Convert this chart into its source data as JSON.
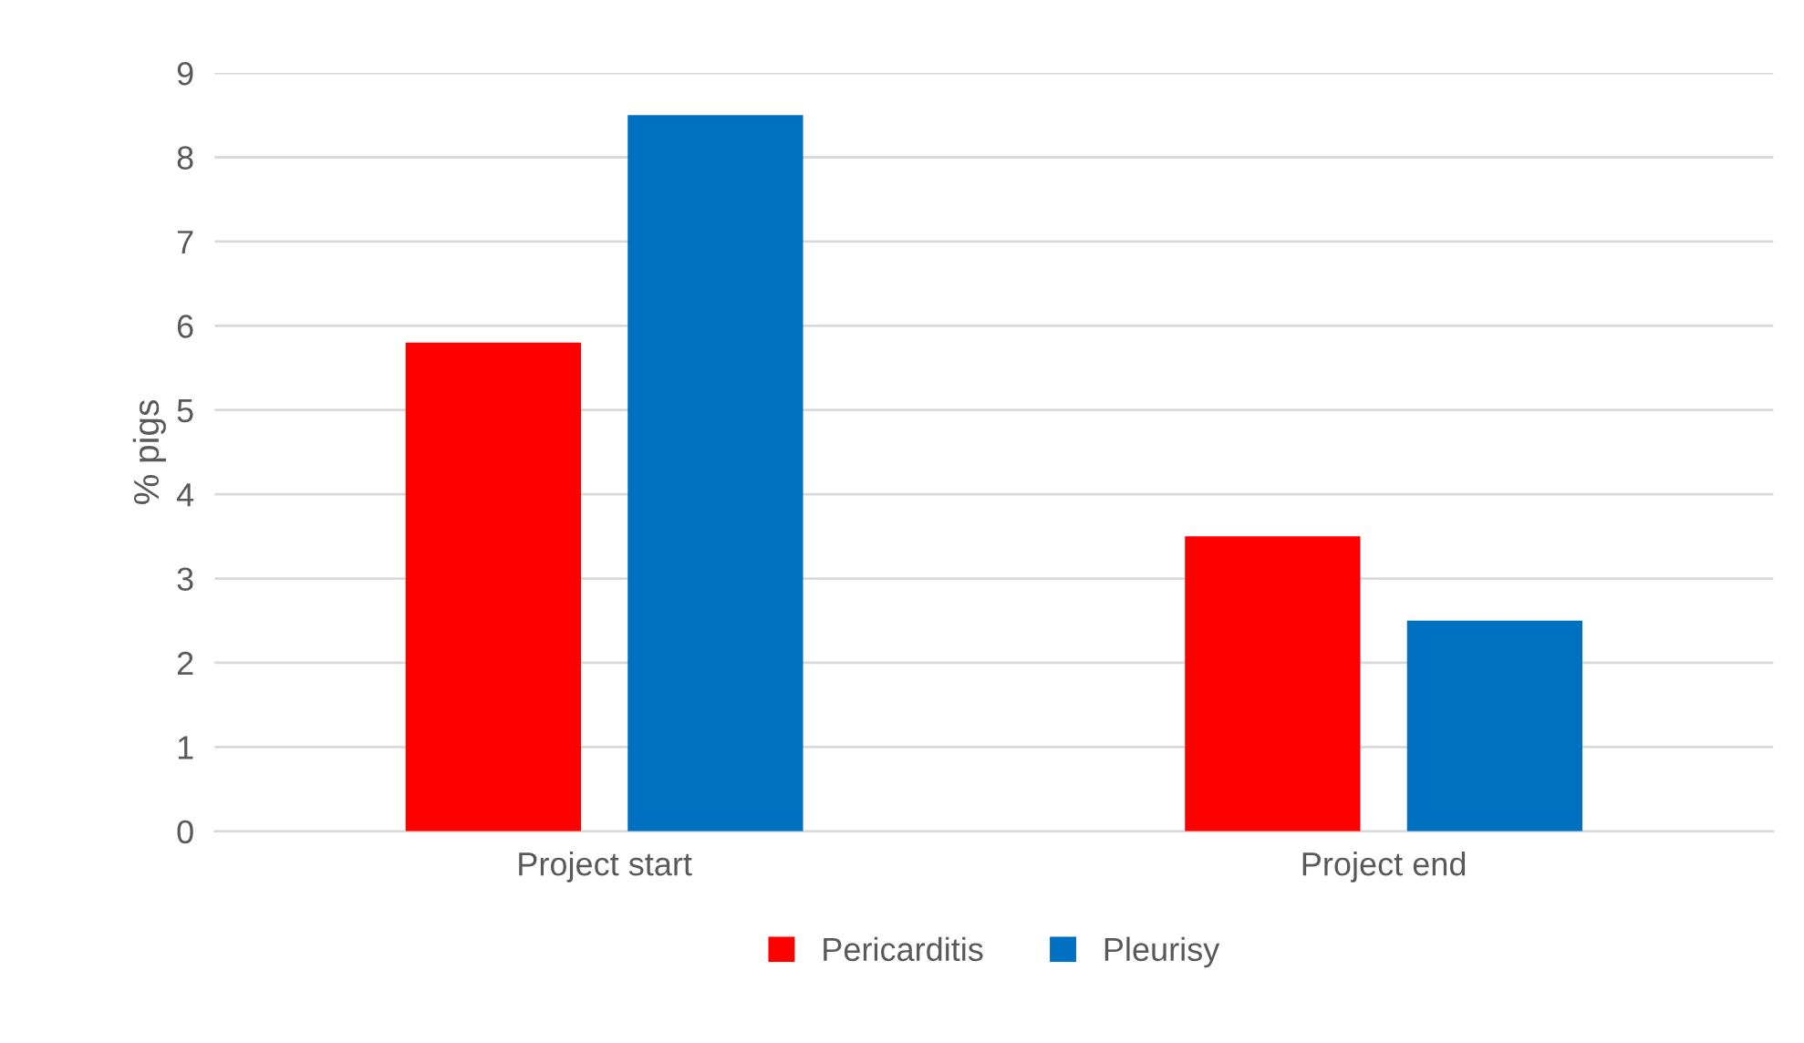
{
  "chart_data": {
    "type": "bar",
    "ylabel": "% pigs",
    "categories": [
      "Project start",
      "Project end"
    ],
    "series": [
      {
        "name": "Pericarditis",
        "color": "#ff0000",
        "values": [
          5.8,
          3.5
        ]
      },
      {
        "name": "Pleurisy",
        "color": "#0070c0",
        "values": [
          8.5,
          2.5
        ]
      }
    ],
    "ylim": [
      0,
      9
    ],
    "yticks": [
      0,
      1,
      2,
      3,
      4,
      5,
      6,
      7,
      8,
      9
    ],
    "grid": "y",
    "legend": "bottom"
  }
}
